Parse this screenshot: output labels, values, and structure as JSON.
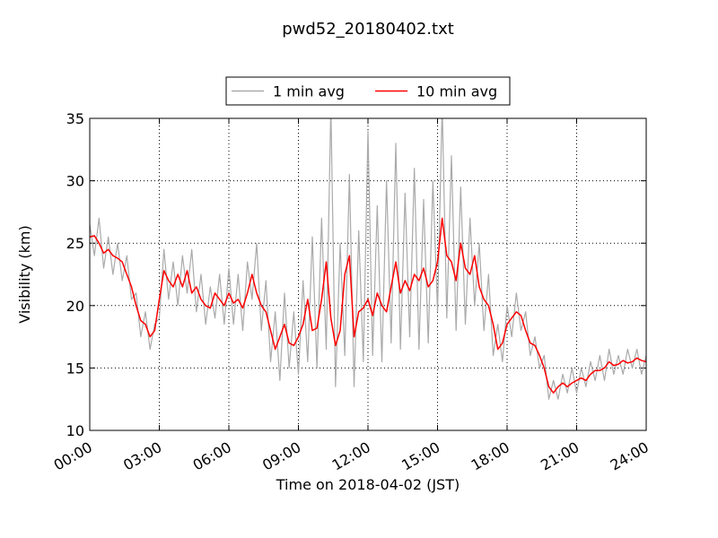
{
  "chart_data": {
    "type": "line",
    "title": "pwd52_20180402.txt",
    "x_label": "Time on 2018-04-02 (JST)",
    "y_label": "Visibility (km)",
    "x": [
      0,
      0.2,
      0.4,
      0.6,
      0.8,
      1,
      1.2,
      1.4,
      1.6,
      1.8,
      2,
      2.2,
      2.4,
      2.6,
      2.8,
      3,
      3.2,
      3.4,
      3.6,
      3.8,
      4,
      4.2,
      4.4,
      4.6,
      4.8,
      5,
      5.2,
      5.4,
      5.6,
      5.8,
      6,
      6.2,
      6.4,
      6.6,
      6.8,
      7,
      7.2,
      7.4,
      7.6,
      7.8,
      8,
      8.2,
      8.4,
      8.6,
      8.8,
      9,
      9.2,
      9.4,
      9.6,
      9.8,
      10,
      10.2,
      10.4,
      10.6,
      10.8,
      11,
      11.2,
      11.4,
      11.6,
      11.8,
      12,
      12.2,
      12.4,
      12.6,
      12.8,
      13,
      13.2,
      13.4,
      13.6,
      13.8,
      14,
      14.2,
      14.4,
      14.6,
      14.8,
      15,
      15.2,
      15.4,
      15.6,
      15.8,
      16,
      16.2,
      16.4,
      16.6,
      16.8,
      17,
      17.2,
      17.4,
      17.6,
      17.8,
      18,
      18.2,
      18.4,
      18.6,
      18.8,
      19,
      19.2,
      19.4,
      19.6,
      19.8,
      20,
      20.2,
      20.4,
      20.6,
      20.8,
      21,
      21.2,
      21.4,
      21.6,
      21.8,
      22,
      22.2,
      22.4,
      22.6,
      22.8,
      23,
      23.2,
      23.4,
      23.6,
      23.8,
      24
    ],
    "series": [
      {
        "name": "1 min avg",
        "color": "#aaaaaa",
        "values": [
          26.5,
          24.0,
          27.0,
          23.0,
          25.5,
          22.5,
          25.0,
          22.0,
          24.0,
          20.5,
          21.0,
          17.5,
          19.5,
          16.5,
          18.5,
          19.0,
          24.5,
          20.5,
          23.5,
          20.0,
          24.0,
          21.0,
          24.5,
          19.5,
          22.5,
          18.5,
          21.5,
          19.0,
          22.5,
          18.5,
          23.0,
          18.5,
          22.5,
          18.0,
          23.5,
          20.5,
          25.0,
          18.0,
          22.0,
          15.5,
          19.5,
          14.0,
          21.0,
          15.0,
          19.5,
          14.5,
          22.0,
          15.5,
          25.5,
          15.0,
          27.0,
          16.5,
          36.0,
          13.5,
          25.0,
          16.0,
          30.5,
          13.5,
          26.0,
          15.5,
          34.0,
          16.0,
          28.0,
          15.5,
          30.0,
          17.0,
          33.0,
          16.5,
          29.0,
          17.5,
          31.0,
          16.5,
          28.5,
          17.0,
          30.0,
          19.5,
          36.0,
          19.0,
          32.0,
          18.0,
          29.5,
          18.5,
          27.0,
          20.0,
          25.0,
          18.0,
          22.5,
          16.0,
          18.5,
          15.5,
          20.0,
          17.5,
          21.0,
          18.0,
          19.5,
          16.0,
          17.5,
          15.0,
          16.0,
          12.5,
          14.0,
          12.5,
          14.5,
          13.0,
          15.0,
          13.0,
          15.0,
          13.5,
          15.5,
          14.0,
          16.0,
          14.0,
          16.5,
          14.5,
          16.0,
          14.5,
          16.5,
          15.0,
          16.5,
          14.5,
          16.0
        ]
      },
      {
        "name": "10 min avg",
        "color": "#ff0000",
        "values": [
          25.5,
          25.6,
          25.0,
          24.2,
          24.5,
          24.0,
          23.8,
          23.5,
          22.5,
          21.5,
          20.0,
          18.8,
          18.5,
          17.5,
          18.0,
          20.5,
          22.8,
          22.0,
          21.5,
          22.5,
          21.5,
          22.8,
          21.0,
          21.5,
          20.5,
          20.0,
          19.8,
          21.0,
          20.5,
          20.0,
          21.0,
          20.2,
          20.5,
          19.8,
          21.0,
          22.5,
          21.0,
          20.0,
          19.5,
          18.0,
          16.5,
          17.5,
          18.5,
          17.0,
          16.8,
          17.5,
          18.5,
          20.5,
          18.0,
          18.2,
          20.5,
          23.5,
          19.0,
          16.8,
          18.0,
          22.5,
          24.0,
          17.5,
          19.5,
          19.8,
          20.5,
          19.2,
          21.0,
          20.0,
          19.5,
          21.5,
          23.5,
          21.0,
          22.0,
          21.2,
          22.5,
          22.0,
          23.0,
          21.5,
          22.0,
          23.5,
          27.0,
          24.0,
          23.5,
          22.0,
          25.0,
          23.0,
          22.5,
          24.0,
          21.5,
          20.5,
          20.0,
          18.5,
          16.5,
          17.0,
          18.5,
          19.0,
          19.5,
          19.2,
          18.0,
          17.0,
          16.8,
          16.0,
          15.0,
          13.5,
          13.0,
          13.5,
          13.8,
          13.5,
          13.8,
          14.0,
          14.2,
          14.0,
          14.5,
          14.8,
          14.8,
          15.0,
          15.5,
          15.2,
          15.3,
          15.6,
          15.4,
          15.5,
          15.8,
          15.6,
          15.5
        ]
      }
    ],
    "xlim": [
      0,
      24
    ],
    "xticks": [
      {
        "value": 0,
        "label": "00:00"
      },
      {
        "value": 3,
        "label": "03:00"
      },
      {
        "value": 6,
        "label": "06:00"
      },
      {
        "value": 9,
        "label": "09:00"
      },
      {
        "value": 12,
        "label": "12:00"
      },
      {
        "value": 15,
        "label": "15:00"
      },
      {
        "value": 18,
        "label": "18:00"
      },
      {
        "value": 21,
        "label": "21:00"
      },
      {
        "value": 24,
        "label": "24:00"
      }
    ],
    "ylim": [
      10,
      35
    ],
    "yticks": [
      10,
      15,
      20,
      25,
      30,
      35
    ],
    "grid": true,
    "legend": "top"
  }
}
